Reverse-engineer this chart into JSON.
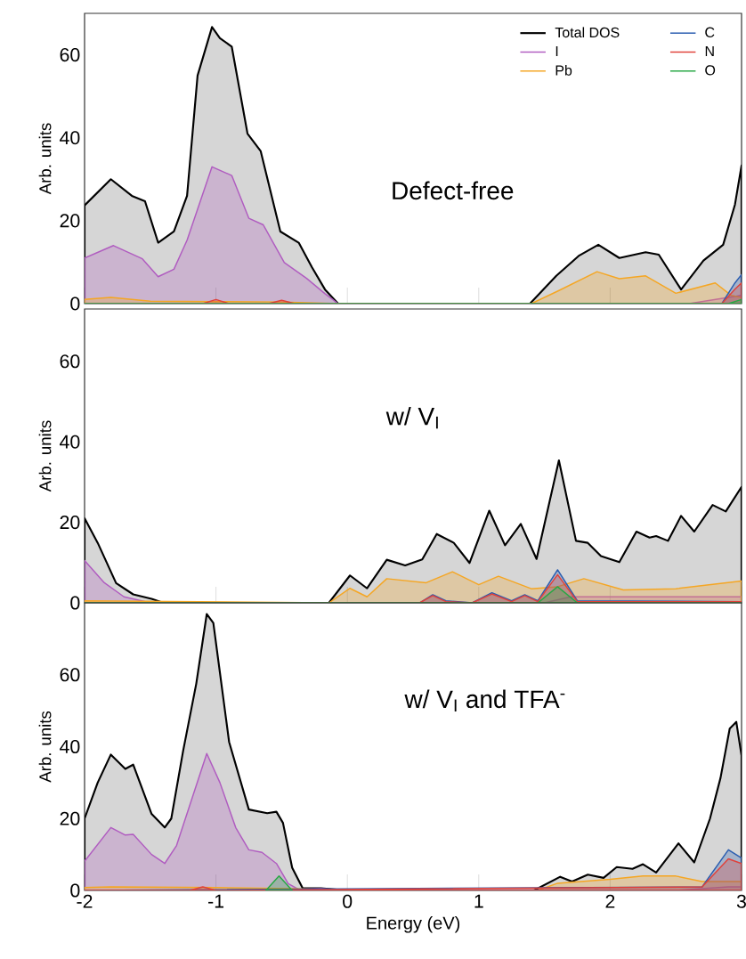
{
  "chart_data": [
    {
      "type": "area",
      "ylabel": "Arb. units",
      "xlim": [
        -2,
        3
      ],
      "ylim": [
        0,
        70
      ],
      "xticks": [
        -2,
        -1,
        0,
        1,
        2,
        3
      ],
      "yticks": [
        0,
        20,
        40,
        60
      ],
      "tick_labels": "y",
      "legend": "top right",
      "annotations": [
        "Defect-free"
      ],
      "series": [
        {
          "name": "Total DOS",
          "color": "#000000",
          "x": [
            -2,
            -1.8,
            -1.64,
            -1.54,
            -1.44,
            -1.32,
            -1.22,
            -1.14,
            -1.03,
            -0.97,
            -0.88,
            -0.76,
            -0.66,
            -0.51,
            -0.37,
            -0.27,
            -0.17,
            -0.07,
            1.39,
            1.59,
            1.76,
            1.91,
            2.07,
            2.27,
            2.37,
            2.54,
            2.71,
            2.86,
            2.95,
            3
          ],
          "values": [
            23.7,
            30,
            26,
            24.7,
            14.7,
            17.4,
            26,
            55,
            66.7,
            64,
            62,
            41,
            36.8,
            17.4,
            14.7,
            8.8,
            3.4,
            0,
            0,
            6.7,
            11.5,
            14.2,
            11,
            12.4,
            11.8,
            3.4,
            10.4,
            14.2,
            23.9,
            33.3
          ]
        },
        {
          "name": "I",
          "color": "#b05cc0",
          "x": [
            -2,
            -1.78,
            -1.56,
            -1.44,
            -1.32,
            -1.22,
            -1.03,
            -0.88,
            -0.75,
            -0.64,
            -0.48,
            -0.31,
            -0.17,
            -0.07,
            2.6,
            2.9,
            3
          ],
          "values": [
            11,
            14,
            10.8,
            6.5,
            8.3,
            15.3,
            33,
            30.9,
            20.6,
            19,
            9.9,
            6.1,
            2.4,
            0,
            0,
            1.5,
            2
          ]
        },
        {
          "name": "Pb",
          "color": "#f5a623",
          "x": [
            -2,
            -1.8,
            -1.5,
            -1,
            -0.5,
            -0.07,
            1.4,
            1.6,
            1.9,
            2.07,
            2.27,
            2.5,
            2.8,
            2.92,
            3
          ],
          "values": [
            1,
            1.5,
            0.6,
            0.5,
            0.4,
            0,
            0,
            3,
            7.7,
            6,
            6.7,
            2.5,
            5,
            2,
            1.5
          ]
        },
        {
          "name": "C",
          "color": "#2a5db0",
          "x": [
            -2,
            2.85,
            2.95,
            3
          ],
          "values": [
            0,
            0,
            5,
            7
          ]
        },
        {
          "name": "N",
          "color": "#e0413a",
          "x": [
            -2,
            -1.1,
            -1,
            -0.9,
            -0.6,
            -0.5,
            -0.4,
            2.85,
            2.95,
            3
          ],
          "values": [
            0,
            0,
            1,
            0,
            0,
            0.8,
            0,
            0,
            3.5,
            5
          ]
        },
        {
          "name": "O",
          "color": "#27a844",
          "x": [
            -2,
            2.9,
            3
          ],
          "values": [
            0,
            0,
            1
          ]
        }
      ]
    },
    {
      "type": "area",
      "ylabel": "Arb. units",
      "xlim": [
        -2,
        3
      ],
      "ylim": [
        0,
        73
      ],
      "xticks": [
        -2,
        -1,
        0,
        1,
        2,
        3
      ],
      "yticks": [
        0,
        20,
        40,
        60
      ],
      "tick_labels": "y",
      "annotations": [
        "w/ V$_{I}$"
      ],
      "series": [
        {
          "color": "#000000",
          "x": [
            -2,
            -1.9,
            -1.76,
            -1.63,
            -1.49,
            -1.4,
            -0.14,
            0.02,
            0.15,
            0.3,
            0.44,
            0.57,
            0.68,
            0.81,
            0.93,
            1.08,
            1.2,
            1.32,
            1.44,
            1.61,
            1.74,
            1.83,
            1.93,
            2.07,
            2.2,
            2.3,
            2.35,
            2.44,
            2.54,
            2.64,
            2.78,
            2.88,
            3
          ],
          "values": [
            21,
            14.9,
            4.9,
            2.1,
            1,
            0,
            0,
            6.8,
            3.6,
            10.7,
            9.3,
            10.8,
            17.1,
            14.9,
            9.9,
            22.9,
            14.3,
            19.6,
            10.9,
            35.4,
            15.4,
            14.9,
            11.6,
            10.1,
            17.7,
            16.2,
            16.6,
            15.4,
            21.6,
            17.7,
            24.3,
            22.7,
            28.8
          ]
        },
        {
          "color": "#b05cc0",
          "x": [
            -2,
            -1.85,
            -1.7,
            -1.5,
            1.5,
            1.7,
            2.3,
            3
          ],
          "values": [
            10.5,
            5,
            1.5,
            0,
            0,
            1.5,
            1.5,
            1.5
          ]
        },
        {
          "color": "#f5a623",
          "x": [
            -2,
            -0.14,
            0.02,
            0.15,
            0.3,
            0.6,
            0.8,
            1,
            1.15,
            1.4,
            1.6,
            1.8,
            2.1,
            2.5,
            3
          ],
          "values": [
            0.5,
            0,
            3.6,
            1.5,
            6,
            5,
            7.7,
            4.5,
            6.6,
            3.5,
            4,
            6,
            3.2,
            3.5,
            5.4
          ]
        },
        {
          "color": "#2a5db0",
          "x": [
            -2,
            0.55,
            0.65,
            0.75,
            0.95,
            1.1,
            1.25,
            1.35,
            1.45,
            1.6,
            1.75,
            3
          ],
          "values": [
            0,
            0,
            2,
            0.5,
            0,
            2.5,
            0.5,
            2,
            0.5,
            8.2,
            0.5,
            0.3
          ]
        },
        {
          "color": "#e0413a",
          "x": [
            -2,
            0.55,
            0.65,
            0.75,
            0.95,
            1.1,
            1.25,
            1.35,
            1.45,
            1.6,
            1.75,
            3
          ],
          "values": [
            0,
            0,
            1.8,
            0.3,
            0,
            2.2,
            0.3,
            1.8,
            0.3,
            7,
            0.3,
            0.3
          ]
        },
        {
          "color": "#27a844",
          "x": [
            -2,
            1.45,
            1.6,
            1.75,
            3
          ],
          "values": [
            0,
            0,
            4,
            0,
            0
          ]
        }
      ]
    },
    {
      "type": "area",
      "xlabel": "Energy (eV)",
      "ylabel": "Arb. units",
      "xlim": [
        -2,
        3
      ],
      "ylim": [
        0,
        80
      ],
      "xticks": [
        -2,
        -1,
        0,
        1,
        2,
        3
      ],
      "yticks": [
        0,
        20,
        40,
        60
      ],
      "annotations": [
        "w/ V$_{I}$ and TFA$^{-}$"
      ],
      "series": [
        {
          "color": "#000000",
          "x": [
            -2,
            -1.9,
            -1.8,
            -1.69,
            -1.63,
            -1.49,
            -1.39,
            -1.34,
            -1.25,
            -1.15,
            -1.07,
            -1.02,
            -0.9,
            -0.75,
            -0.61,
            -0.54,
            -0.49,
            -0.42,
            -0.34,
            -0.2,
            0,
            1.42,
            1.52,
            1.62,
            1.71,
            1.83,
            1.95,
            2.05,
            2.17,
            2.25,
            2.35,
            2.52,
            2.64,
            2.76,
            2.84,
            2.91,
            2.96,
            3
          ],
          "values": [
            20,
            30,
            37.8,
            33.8,
            35,
            21.3,
            17.5,
            20,
            38.8,
            57.5,
            76.9,
            74.4,
            41.3,
            22.5,
            21.5,
            21.9,
            18.8,
            6.3,
            0.6,
            0.6,
            0,
            0,
            1.9,
            3.8,
            2.5,
            4.4,
            3.5,
            6.5,
            6,
            7.3,
            5,
            13.1,
            7.8,
            20,
            31.3,
            45,
            46.9,
            37.5
          ]
        },
        {
          "color": "#b05cc0",
          "x": [
            -2,
            -1.8,
            -1.69,
            -1.63,
            -1.49,
            -1.39,
            -1.3,
            -1.07,
            -0.97,
            -0.85,
            -0.75,
            -0.65,
            -0.54,
            -0.45,
            -0.37,
            -0.2,
            0,
            2.5,
            2.9,
            3
          ],
          "values": [
            8.1,
            17.5,
            15.4,
            15.6,
            10,
            7.5,
            12.5,
            38.1,
            30,
            17.5,
            11.3,
            10.6,
            7.5,
            1.9,
            0.3,
            0.5,
            0,
            0,
            1,
            1
          ]
        },
        {
          "color": "#f5a623",
          "x": [
            -2,
            -1.8,
            -1,
            -0.4,
            0,
            1.45,
            1.6,
            2,
            2.25,
            2.5,
            2.7,
            3
          ],
          "values": [
            0.8,
            1,
            0.8,
            0.5,
            0,
            0,
            2,
            3.1,
            4,
            4,
            2.5,
            2.5
          ]
        },
        {
          "color": "#2a5db0",
          "x": [
            -2,
            2.7,
            2.9,
            3
          ],
          "values": [
            0,
            1,
            11.3,
            9
          ]
        },
        {
          "color": "#e0413a",
          "x": [
            -2,
            -1.2,
            -1.1,
            -1,
            2.7,
            2.9,
            3
          ],
          "values": [
            0,
            0,
            1,
            0,
            1,
            8.8,
            7.5
          ]
        },
        {
          "color": "#27a844",
          "x": [
            -0.62,
            -0.52,
            -0.42
          ],
          "values": [
            0,
            4,
            0
          ]
        }
      ]
    }
  ]
}
